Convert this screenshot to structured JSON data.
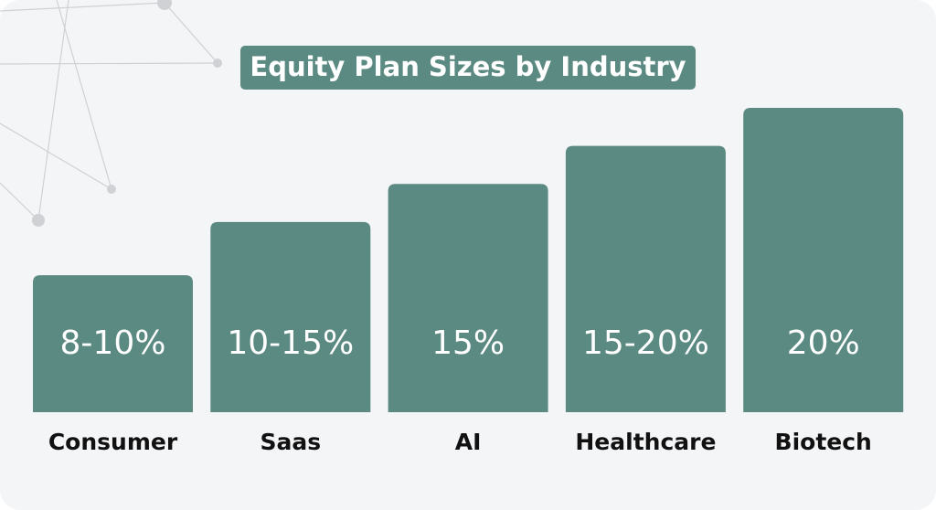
{
  "chart_data": {
    "type": "bar",
    "title": "Equity Plan Sizes by Industry",
    "categories": [
      "Consumer",
      "Saas",
      "AI",
      "Healthcare",
      "Biotech"
    ],
    "values": [
      9,
      12.5,
      15,
      17.5,
      20
    ],
    "value_labels": [
      "8-10%",
      "10-15%",
      "15%",
      "15-20%",
      "20%"
    ],
    "color": "#5b8a82"
  }
}
